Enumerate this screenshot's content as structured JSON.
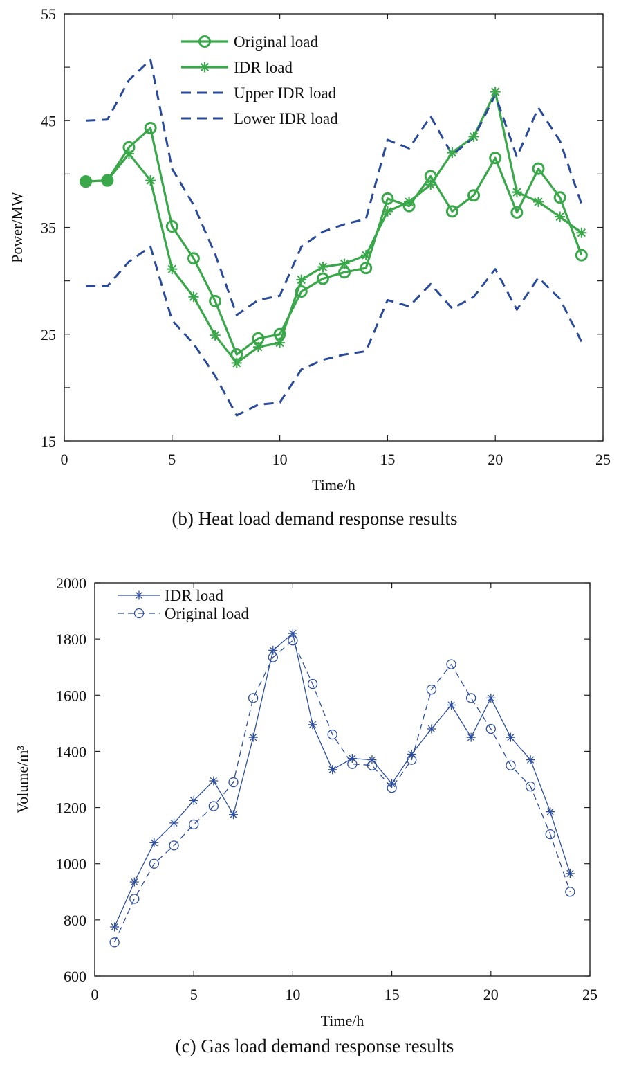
{
  "chart_data": [
    {
      "type": "line",
      "caption": "(b) Heat load demand response results",
      "xlabel": "Time/h",
      "ylabel": "Power/MW",
      "xlim": [
        0,
        25
      ],
      "ylim": [
        15,
        55
      ],
      "xticks": [
        "0",
        "5",
        "10",
        "15",
        "20",
        "25"
      ],
      "yticks": [
        "15",
        "25",
        "35",
        "45",
        "55"
      ],
      "x": [
        1,
        2,
        3,
        4,
        5,
        6,
        7,
        8,
        9,
        10,
        11,
        12,
        13,
        14,
        15,
        16,
        17,
        18,
        19,
        20,
        21,
        22,
        23,
        24
      ],
      "legend_position": "top-left",
      "series": [
        {
          "name": "Original load",
          "color": "#3aa84a",
          "style": "solid",
          "marker": "circle",
          "values": [
            39.3,
            39.4,
            42.5,
            44.3,
            35.1,
            32.1,
            28.1,
            23.1,
            24.6,
            25.0,
            29.0,
            30.2,
            30.8,
            31.2,
            37.7,
            37.0,
            39.8,
            36.5,
            38.0,
            41.5,
            36.4,
            40.5,
            37.8,
            32.4
          ]
        },
        {
          "name": "IDR load",
          "color": "#3aa84a",
          "style": "solid",
          "marker": "star",
          "values": [
            39.3,
            39.4,
            41.9,
            39.4,
            31.1,
            28.5,
            24.9,
            22.3,
            23.8,
            24.2,
            30.1,
            31.3,
            31.6,
            32.4,
            36.5,
            37.4,
            39.0,
            42.0,
            43.5,
            47.7,
            38.3,
            37.4,
            36.0,
            34.5
          ]
        },
        {
          "name": "Upper IDR load",
          "color": "#2a4a9a",
          "style": "dashed",
          "marker": "none",
          "values": [
            45.0,
            45.1,
            48.8,
            50.7,
            40.5,
            37.1,
            32.5,
            26.8,
            28.2,
            28.6,
            33.2,
            34.6,
            35.3,
            35.8,
            43.2,
            42.4,
            45.4,
            41.8,
            43.4,
            47.4,
            41.6,
            46.2,
            43.1,
            37.2
          ]
        },
        {
          "name": "Lower IDR load",
          "color": "#2a4a9a",
          "style": "dashed",
          "marker": "none",
          "values": [
            29.5,
            29.5,
            31.8,
            33.2,
            26.3,
            24.1,
            21.1,
            17.4,
            18.4,
            18.6,
            21.7,
            22.6,
            23.1,
            23.4,
            28.2,
            27.6,
            29.7,
            27.4,
            28.5,
            31.1,
            27.3,
            30.3,
            28.3,
            24.3
          ]
        }
      ]
    },
    {
      "type": "line",
      "caption": "(c) Gas load demand response results",
      "xlabel": "Time/h",
      "ylabel": "Volume/m³",
      "xlim": [
        0,
        25
      ],
      "ylim": [
        600,
        2000
      ],
      "xticks": [
        "0",
        "5",
        "10",
        "15",
        "20",
        "25"
      ],
      "yticks": [
        "600",
        "800",
        "1000",
        "1200",
        "1400",
        "1600",
        "1800",
        "2000"
      ],
      "x": [
        1,
        2,
        3,
        4,
        5,
        6,
        7,
        8,
        9,
        10,
        11,
        12,
        13,
        14,
        15,
        16,
        17,
        18,
        19,
        20,
        21,
        22,
        23,
        24
      ],
      "legend_position": "top-left",
      "series": [
        {
          "name": "IDR load",
          "color": "#2e4f9e",
          "style": "solid",
          "marker": "star",
          "values": [
            775,
            935,
            1075,
            1145,
            1225,
            1295,
            1175,
            1450,
            1760,
            1820,
            1495,
            1335,
            1375,
            1370,
            1285,
            1390,
            1480,
            1565,
            1450,
            1590,
            1450,
            1370,
            1185,
            965
          ]
        },
        {
          "name": "Original load",
          "color": "#2e4f9e",
          "style": "dashed",
          "marker": "circle",
          "values": [
            720,
            875,
            1000,
            1065,
            1140,
            1205,
            1290,
            1590,
            1735,
            1795,
            1640,
            1460,
            1355,
            1350,
            1270,
            1370,
            1620,
            1710,
            1590,
            1480,
            1350,
            1275,
            1105,
            900
          ]
        }
      ]
    }
  ]
}
